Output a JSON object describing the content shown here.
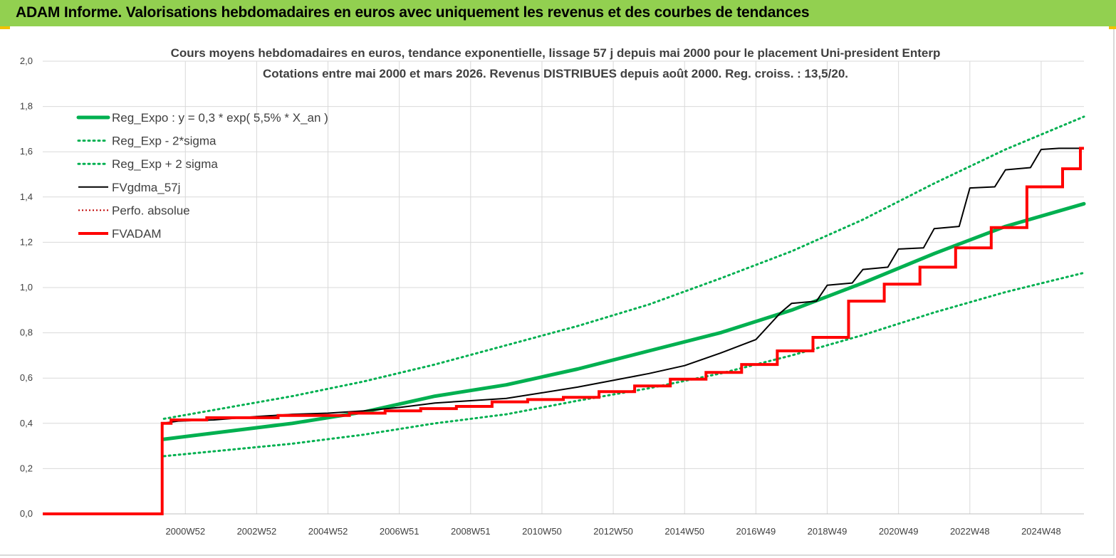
{
  "header": {
    "title": "ADAM Informe. Valorisations hebdomadaires en euros avec uniquement les revenus et des courbes de tendances"
  },
  "colors": {
    "header_bg": "#92d050",
    "trend": "#00b050",
    "fvgdma": "#000000",
    "fvadam": "#ff0000",
    "perfo": "#c00000"
  },
  "chart_data": {
    "type": "line",
    "title": "Cours moyens hebdomadaires en euros, tendance exponentielle, lissage 57 j depuis mai 2000 pour le placement Uni-president Enterp",
    "subtitle": "Cotations entre mai 2000 et mars 2026. Revenus DISTRIBUES depuis août 2000. Reg. croiss. : 13,5/20.",
    "ylim": [
      0,
      2
    ],
    "xlim": [
      1997.0,
      2026.2
    ],
    "grid": true,
    "legend_position": "top-left",
    "y_ticks": [
      "0,0",
      "0,2",
      "0,4",
      "0,6",
      "0,8",
      "1,0",
      "1,2",
      "1,4",
      "1,6",
      "1,8",
      "2,0"
    ],
    "x_ticks": [
      {
        "label": "2000W52",
        "x": 2001.0
      },
      {
        "label": "2002W52",
        "x": 2003.0
      },
      {
        "label": "2004W52",
        "x": 2005.0
      },
      {
        "label": "2006W51",
        "x": 2007.0
      },
      {
        "label": "2008W51",
        "x": 2009.0
      },
      {
        "label": "2010W50",
        "x": 2011.0
      },
      {
        "label": "2012W50",
        "x": 2013.0
      },
      {
        "label": "2014W50",
        "x": 2015.0
      },
      {
        "label": "2016W49",
        "x": 2017.0
      },
      {
        "label": "2018W49",
        "x": 2019.0
      },
      {
        "label": "2020W49",
        "x": 2021.0
      },
      {
        "label": "2022W48",
        "x": 2023.0
      },
      {
        "label": "2024W48",
        "x": 2025.0
      }
    ],
    "series": [
      {
        "name": "Reg_Expo : y = 0,3 * exp( 5,5% *  X_an )",
        "style": "thick",
        "color": "#00b050",
        "points": [
          [
            2000.4,
            0.33
          ],
          [
            2004,
            0.4
          ],
          [
            2006,
            0.45
          ],
          [
            2008,
            0.52
          ],
          [
            2010,
            0.57
          ],
          [
            2012,
            0.64
          ],
          [
            2014,
            0.72
          ],
          [
            2016,
            0.8
          ],
          [
            2018,
            0.9
          ],
          [
            2020,
            1.02
          ],
          [
            2022,
            1.15
          ],
          [
            2024,
            1.27
          ],
          [
            2026.2,
            1.37
          ]
        ]
      },
      {
        "name": "Reg_Exp - 2*sigma",
        "style": "dotted",
        "color": "#00b050",
        "points": [
          [
            2000.4,
            0.255
          ],
          [
            2004,
            0.31
          ],
          [
            2006,
            0.35
          ],
          [
            2008,
            0.4
          ],
          [
            2010,
            0.44
          ],
          [
            2012,
            0.5
          ],
          [
            2014,
            0.555
          ],
          [
            2016,
            0.62
          ],
          [
            2018,
            0.7
          ],
          [
            2020,
            0.79
          ],
          [
            2022,
            0.89
          ],
          [
            2024,
            0.98
          ],
          [
            2026.2,
            1.065
          ]
        ]
      },
      {
        "name": "Reg_Exp + 2 sigma",
        "style": "dotted",
        "color": "#00b050",
        "points": [
          [
            2000.4,
            0.42
          ],
          [
            2004,
            0.52
          ],
          [
            2006,
            0.585
          ],
          [
            2008,
            0.66
          ],
          [
            2010,
            0.745
          ],
          [
            2012,
            0.83
          ],
          [
            2014,
            0.925
          ],
          [
            2016,
            1.04
          ],
          [
            2018,
            1.16
          ],
          [
            2020,
            1.3
          ],
          [
            2022,
            1.46
          ],
          [
            2024,
            1.61
          ],
          [
            2026.2,
            1.755
          ]
        ]
      },
      {
        "name": "FVgdma_57j",
        "style": "thin",
        "color": "#000000",
        "points": [
          [
            1997,
            0
          ],
          [
            2000.35,
            0
          ],
          [
            2000.35,
            0.4
          ],
          [
            2000.8,
            0.41
          ],
          [
            2001.8,
            0.415
          ],
          [
            2003,
            0.43
          ],
          [
            2004,
            0.44
          ],
          [
            2005,
            0.445
          ],
          [
            2006,
            0.455
          ],
          [
            2007,
            0.47
          ],
          [
            2008,
            0.49
          ],
          [
            2009,
            0.5
          ],
          [
            2010,
            0.51
          ],
          [
            2011,
            0.535
          ],
          [
            2012,
            0.56
          ],
          [
            2013,
            0.59
          ],
          [
            2014,
            0.62
          ],
          [
            2015,
            0.655
          ],
          [
            2016,
            0.71
          ],
          [
            2017,
            0.77
          ],
          [
            2017.7,
            0.89
          ],
          [
            2018,
            0.93
          ],
          [
            2018.7,
            0.94
          ],
          [
            2019,
            1.01
          ],
          [
            2019.7,
            1.02
          ],
          [
            2020,
            1.08
          ],
          [
            2020.7,
            1.09
          ],
          [
            2021,
            1.17
          ],
          [
            2021.7,
            1.175
          ],
          [
            2022,
            1.26
          ],
          [
            2022.7,
            1.27
          ],
          [
            2023,
            1.44
          ],
          [
            2023.7,
            1.445
          ],
          [
            2024,
            1.52
          ],
          [
            2024.7,
            1.53
          ],
          [
            2025,
            1.61
          ],
          [
            2025.5,
            1.615
          ],
          [
            2026.2,
            1.615
          ]
        ]
      },
      {
        "name": "Perfo. absolue",
        "style": "dotted-thin",
        "color": "#c00000",
        "points": []
      },
      {
        "name": "FVADAM",
        "style": "step",
        "color": "#ff0000",
        "points": [
          [
            1997,
            0
          ],
          [
            2000.35,
            0
          ],
          [
            2000.35,
            0.4
          ],
          [
            2000.6,
            0.4
          ],
          [
            2000.6,
            0.415
          ],
          [
            2001.6,
            0.415
          ],
          [
            2001.6,
            0.425
          ],
          [
            2003.6,
            0.425
          ],
          [
            2003.6,
            0.435
          ],
          [
            2005.6,
            0.435
          ],
          [
            2005.6,
            0.445
          ],
          [
            2006.6,
            0.445
          ],
          [
            2006.6,
            0.455
          ],
          [
            2007.6,
            0.455
          ],
          [
            2007.6,
            0.465
          ],
          [
            2008.6,
            0.465
          ],
          [
            2008.6,
            0.475
          ],
          [
            2009.6,
            0.475
          ],
          [
            2009.6,
            0.495
          ],
          [
            2010.6,
            0.495
          ],
          [
            2010.6,
            0.505
          ],
          [
            2011.6,
            0.505
          ],
          [
            2011.6,
            0.515
          ],
          [
            2012.6,
            0.515
          ],
          [
            2012.6,
            0.54
          ],
          [
            2013.6,
            0.54
          ],
          [
            2013.6,
            0.565
          ],
          [
            2014.6,
            0.565
          ],
          [
            2014.6,
            0.595
          ],
          [
            2015.6,
            0.595
          ],
          [
            2015.6,
            0.625
          ],
          [
            2016.6,
            0.625
          ],
          [
            2016.6,
            0.66
          ],
          [
            2017.6,
            0.66
          ],
          [
            2017.6,
            0.72
          ],
          [
            2018.6,
            0.72
          ],
          [
            2018.6,
            0.78
          ],
          [
            2019.6,
            0.78
          ],
          [
            2019.6,
            0.94
          ],
          [
            2020.6,
            0.94
          ],
          [
            2020.6,
            1.015
          ],
          [
            2021.6,
            1.015
          ],
          [
            2021.6,
            1.09
          ],
          [
            2022.6,
            1.09
          ],
          [
            2022.6,
            1.175
          ],
          [
            2023.6,
            1.175
          ],
          [
            2023.6,
            1.265
          ],
          [
            2024.6,
            1.265
          ],
          [
            2024.6,
            1.445
          ],
          [
            2025.6,
            1.445
          ],
          [
            2025.6,
            1.525
          ],
          [
            2026.1,
            1.525
          ],
          [
            2026.1,
            1.615
          ],
          [
            2026.2,
            1.615
          ]
        ]
      }
    ]
  }
}
